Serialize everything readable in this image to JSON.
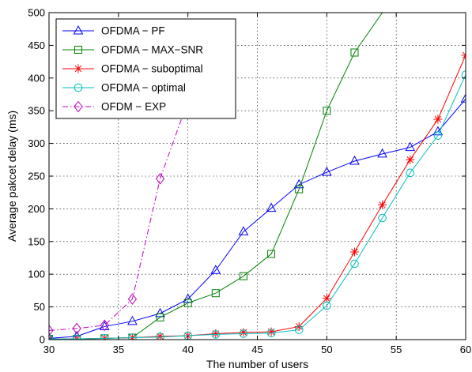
{
  "chart_data": {
    "type": "line",
    "xlabel": "The number of users",
    "ylabel": "Average pakcet delay (ms)",
    "xlim": [
      30,
      60
    ],
    "ylim": [
      0,
      500
    ],
    "xticks": [
      30,
      35,
      40,
      45,
      50,
      55,
      60
    ],
    "yticks": [
      0,
      50,
      100,
      150,
      200,
      250,
      300,
      350,
      400,
      450,
      500
    ],
    "grid": true,
    "legend_position": "top-left",
    "series": [
      {
        "name": "OFDMA − PF",
        "color": "#0000ff",
        "marker": "triangle",
        "line_style": "solid",
        "x": [
          30,
          32,
          34,
          36,
          38,
          40,
          42,
          44,
          46,
          48,
          50,
          52,
          54,
          56,
          58,
          60
        ],
        "y": [
          2,
          5,
          20,
          28,
          40,
          62,
          106,
          165,
          201,
          237,
          256,
          273,
          284,
          294,
          318,
          368
        ]
      },
      {
        "name": "OFDMA − MAX−SNR",
        "color": "#008000",
        "marker": "square",
        "line_style": "solid",
        "x": [
          30,
          32,
          34,
          36,
          38,
          40,
          42,
          44,
          46,
          48,
          50,
          52,
          54
        ],
        "y": [
          1,
          1,
          2,
          3,
          34,
          56,
          71,
          97,
          131,
          230,
          350,
          439,
          500
        ]
      },
      {
        "name": "OFDMA − suboptimal",
        "color": "#ff0000",
        "marker": "star",
        "line_style": "solid",
        "x": [
          30,
          32,
          34,
          36,
          38,
          40,
          42,
          44,
          46,
          48,
          50,
          52,
          54,
          56,
          58,
          60
        ],
        "y": [
          1,
          1,
          2,
          3,
          5,
          6,
          9,
          11,
          12,
          20,
          63,
          134,
          206,
          275,
          337,
          435
        ]
      },
      {
        "name": "OFDMA − optimal",
        "color": "#00bfbf",
        "marker": "circle",
        "line_style": "solid",
        "x": [
          30,
          32,
          34,
          36,
          38,
          40,
          42,
          44,
          46,
          48,
          50,
          52,
          54,
          56,
          58,
          60
        ],
        "y": [
          1,
          1,
          2,
          3,
          4,
          6,
          8,
          9,
          10,
          15,
          52,
          116,
          186,
          255,
          312,
          405
        ]
      },
      {
        "name": "OFDM − EXP",
        "color": "#bf00bf",
        "marker": "diamond",
        "line_style": "dashdot",
        "x": [
          30,
          32,
          34,
          36,
          38,
          40
        ],
        "y": [
          14,
          17,
          22,
          62,
          246,
          365
        ]
      }
    ]
  }
}
